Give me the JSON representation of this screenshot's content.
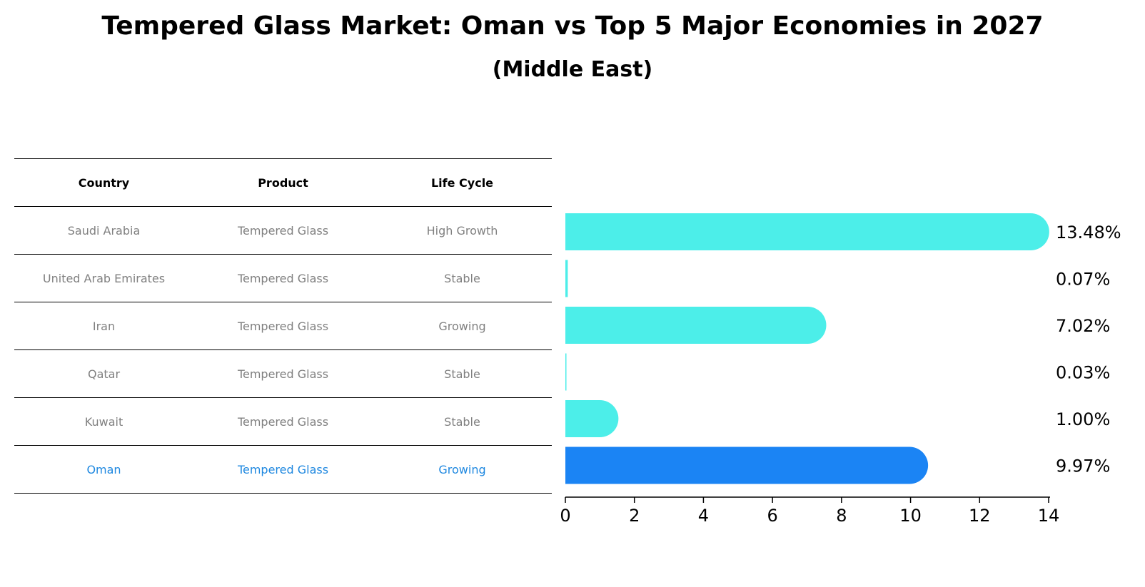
{
  "title": "Tempered Glass Market: Oman vs Top 5 Major Economies in 2027",
  "subtitle": "(Middle East)",
  "table": {
    "headers": [
      "Country",
      "Product",
      "Life Cycle"
    ],
    "rows": [
      [
        "Saudi Arabia",
        "Tempered Glass",
        "High Growth"
      ],
      [
        "United Arab Emirates",
        "Tempered Glass",
        "Stable"
      ],
      [
        "Iran",
        "Tempered Glass",
        "Growing"
      ],
      [
        "Qatar",
        "Tempered Glass",
        "Stable"
      ],
      [
        "Kuwait",
        "Tempered Glass",
        "Stable"
      ],
      [
        "Oman",
        "Tempered Glass",
        "Growing"
      ]
    ],
    "highlight_row": 5
  },
  "chart_data": {
    "type": "bar",
    "orientation": "horizontal",
    "categories": [
      "Saudi Arabia",
      "United Arab Emirates",
      "Iran",
      "Qatar",
      "Kuwait",
      "Oman"
    ],
    "values": [
      13.48,
      0.07,
      7.02,
      0.03,
      1.0,
      9.97
    ],
    "value_labels": [
      "13.48%",
      "0.07%",
      "7.02%",
      "0.03%",
      "1.00%",
      "9.97%"
    ],
    "xlim": [
      0,
      14
    ],
    "xticks": [
      "0",
      "2",
      "4",
      "6",
      "8",
      "10",
      "12",
      "14"
    ],
    "grid": false,
    "colors": {
      "default": "#4ceee9",
      "highlight": "#1b84f4"
    },
    "highlight_index": 5
  }
}
